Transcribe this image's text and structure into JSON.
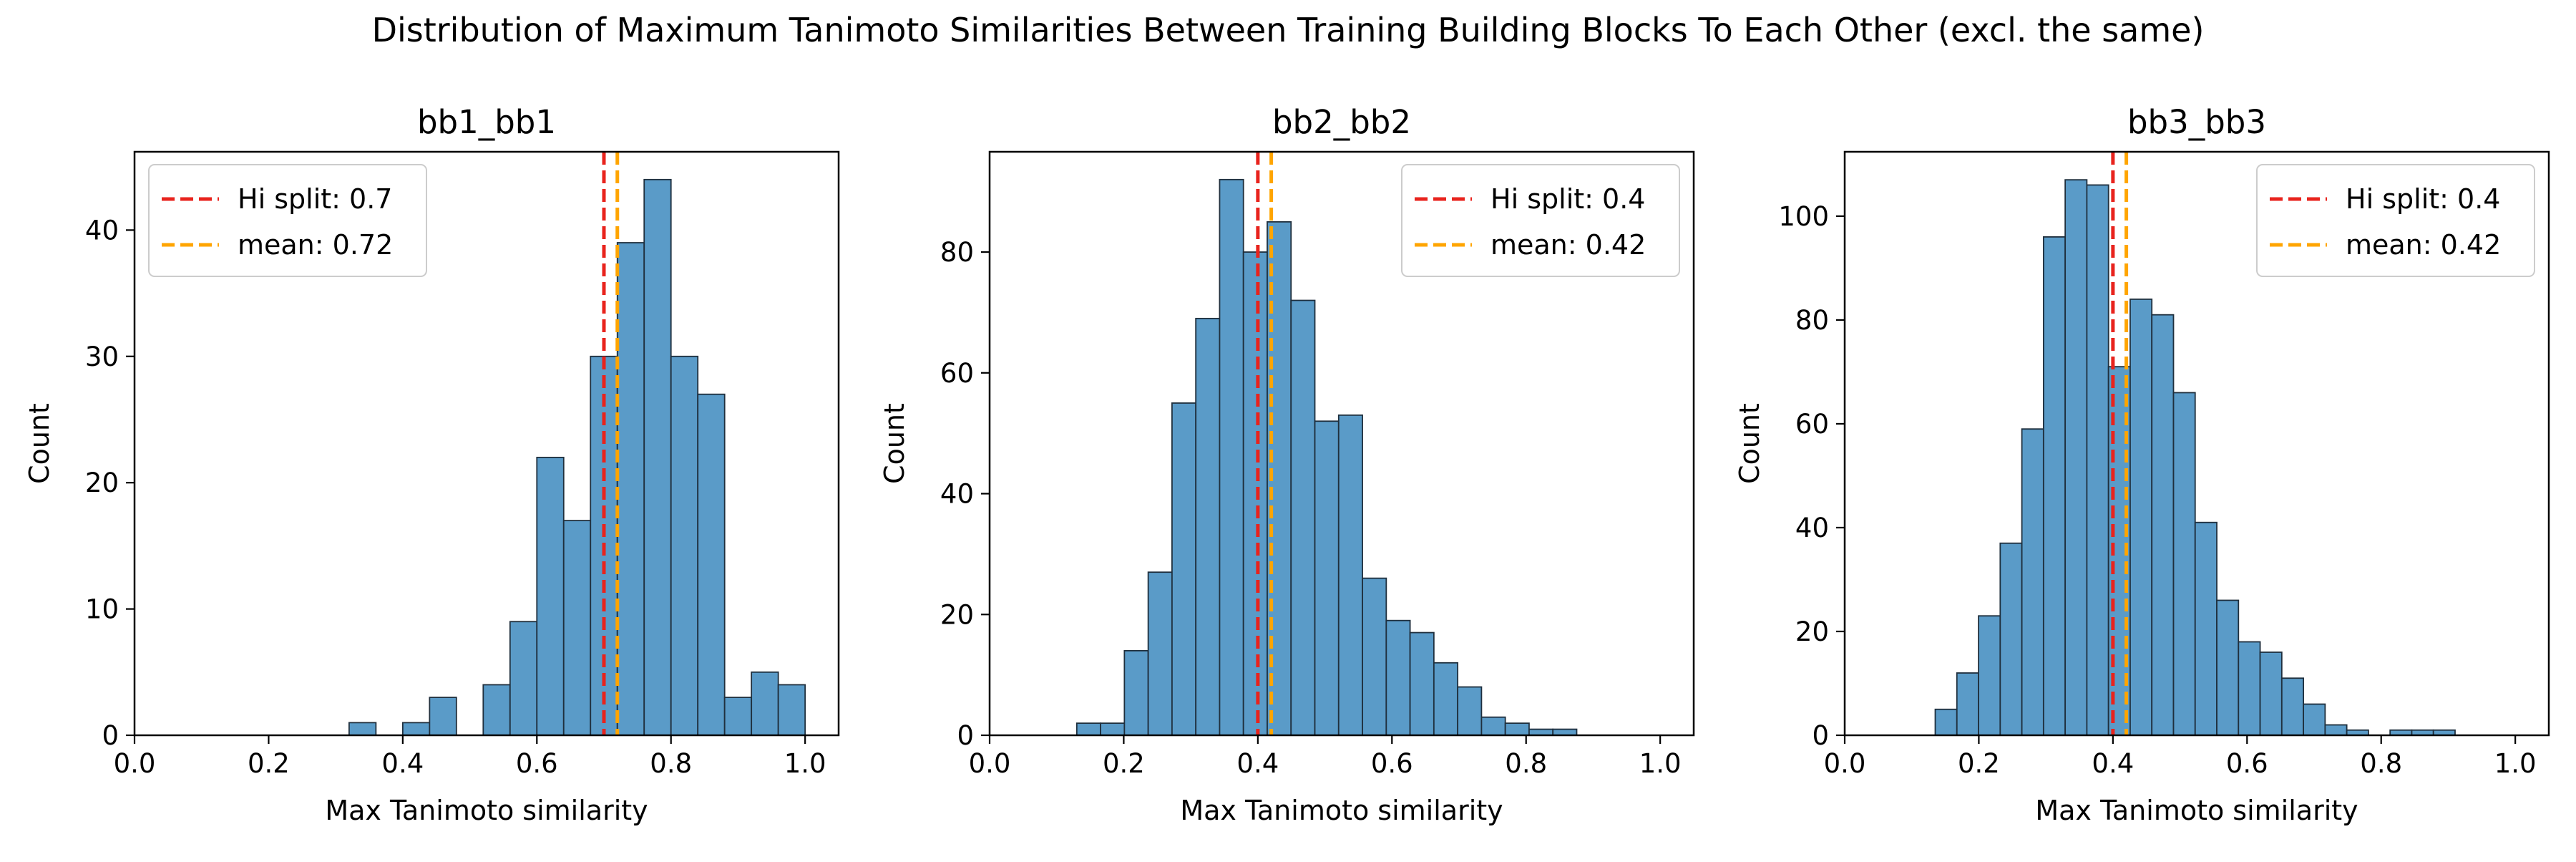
{
  "figure": {
    "suptitle": "Distribution of Maximum Tanimoto Similarities Between Training Building Blocks To Each Other (excl. the same)"
  },
  "colors": {
    "bar_fill": "#5a9bc8",
    "bar_edge": "#1f2f3d",
    "hi_split_line": "#e8231d",
    "mean_line": "#ffa500"
  },
  "chart_data": [
    {
      "type": "bar",
      "title": "bb1_bb1",
      "xlabel": "Max Tanimoto similarity",
      "ylabel": "Count",
      "xlim": [
        0.0,
        1.05
      ],
      "ylim": [
        0,
        46.2
      ],
      "xticks": [
        0.0,
        0.2,
        0.4,
        0.6,
        0.8,
        1.0
      ],
      "xtick_labels": [
        "0.0",
        "0.2",
        "0.4",
        "0.6",
        "0.8",
        "1.0"
      ],
      "yticks": [
        0,
        10,
        20,
        30,
        40
      ],
      "ytick_labels": [
        "0",
        "10",
        "20",
        "30",
        "40"
      ],
      "bin_start": 0.0,
      "bin_width": 0.04,
      "values": [
        0,
        0,
        0,
        0,
        0,
        0,
        0,
        0,
        1,
        0,
        1,
        3,
        0,
        4,
        9,
        22,
        17,
        30,
        39,
        44,
        30,
        27,
        3,
        5,
        4
      ],
      "vlines": [
        {
          "x": 0.7,
          "label": "Hi split: 0.7",
          "color": "#e8231d"
        },
        {
          "x": 0.72,
          "label": "mean: 0.72",
          "color": "#ffa500"
        }
      ],
      "legend_position": "upper-left",
      "grid": false
    },
    {
      "type": "bar",
      "title": "bb2_bb2",
      "xlabel": "Max Tanimoto similarity",
      "ylabel": "Count",
      "xlim": [
        0.0,
        1.05
      ],
      "ylim": [
        0,
        96.6
      ],
      "xticks": [
        0.0,
        0.2,
        0.4,
        0.6,
        0.8,
        1.0
      ],
      "xtick_labels": [
        "0.0",
        "0.2",
        "0.4",
        "0.6",
        "0.8",
        "1.0"
      ],
      "yticks": [
        0,
        20,
        40,
        60,
        80
      ],
      "ytick_labels": [
        "0",
        "20",
        "40",
        "60",
        "80"
      ],
      "bin_start": 0.13,
      "bin_width": 0.0355,
      "values": [
        2,
        2,
        14,
        27,
        55,
        69,
        92,
        80,
        85,
        72,
        52,
        53,
        26,
        19,
        17,
        12,
        8,
        3,
        2,
        1,
        1
      ],
      "vlines": [
        {
          "x": 0.4,
          "label": "Hi split: 0.4",
          "color": "#e8231d"
        },
        {
          "x": 0.42,
          "label": "mean: 0.42",
          "color": "#ffa500"
        }
      ],
      "legend_position": "upper-right",
      "grid": false
    },
    {
      "type": "bar",
      "title": "bb3_bb3",
      "xlabel": "Max Tanimoto similarity",
      "ylabel": "Count",
      "xlim": [
        0.0,
        1.05
      ],
      "ylim": [
        0,
        112.4
      ],
      "xticks": [
        0.0,
        0.2,
        0.4,
        0.6,
        0.8,
        1.0
      ],
      "xtick_labels": [
        "0.0",
        "0.2",
        "0.4",
        "0.6",
        "0.8",
        "1.0"
      ],
      "yticks": [
        0,
        20,
        40,
        60,
        80,
        100
      ],
      "ytick_labels": [
        "0",
        "20",
        "40",
        "60",
        "80",
        "100"
      ],
      "bin_start": 0.135,
      "bin_width": 0.0323,
      "values": [
        5,
        12,
        23,
        37,
        59,
        96,
        107,
        106,
        71,
        84,
        81,
        66,
        41,
        26,
        18,
        16,
        11,
        6,
        2,
        1,
        0,
        1,
        1,
        1
      ],
      "vlines": [
        {
          "x": 0.4,
          "label": "Hi split: 0.4",
          "color": "#e8231d"
        },
        {
          "x": 0.42,
          "label": "mean: 0.42",
          "color": "#ffa500"
        }
      ],
      "legend_position": "upper-right",
      "grid": false
    }
  ]
}
